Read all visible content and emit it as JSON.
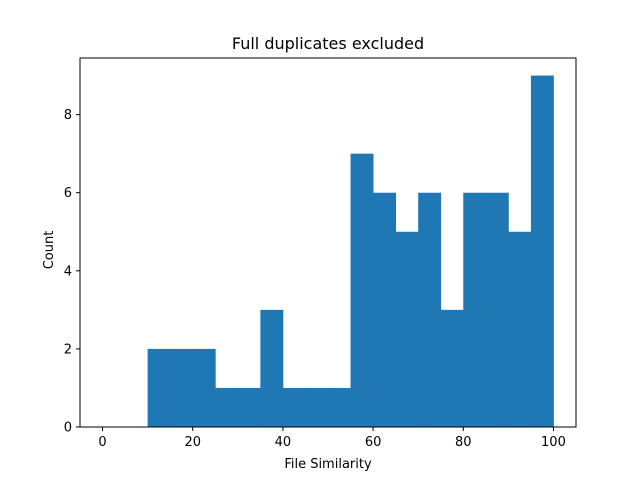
{
  "chart_data": {
    "type": "bar",
    "title": "Full duplicates excluded",
    "xlabel": "File Similarity",
    "ylabel": "Count",
    "bin_edges": [
      10,
      15,
      20,
      25,
      30,
      35,
      40,
      45,
      50,
      55,
      60,
      65,
      70,
      75,
      80,
      85,
      90,
      95,
      100
    ],
    "values": [
      2,
      2,
      2,
      1,
      1,
      3,
      1,
      1,
      1,
      7,
      6,
      5,
      6,
      3,
      6,
      6,
      5,
      9
    ],
    "xlim": [
      -5,
      105
    ],
    "ylim": [
      0,
      9.45
    ],
    "xticks": [
      0,
      20,
      40,
      60,
      80,
      100
    ],
    "yticks": [
      0,
      2,
      4,
      6,
      8
    ],
    "bar_color": "#1f77b4",
    "grid": false
  }
}
